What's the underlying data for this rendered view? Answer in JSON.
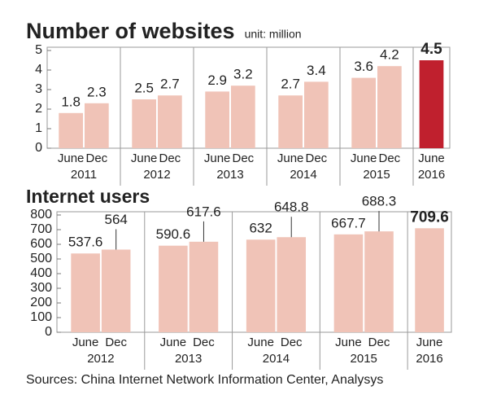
{
  "chart_data": [
    {
      "type": "bar",
      "title": "Number of websites",
      "subtitle": "unit: million",
      "color": "#f0c3b7",
      "ylim": [
        0,
        5
      ],
      "yticks": [
        0,
        1,
        2,
        3,
        4,
        5
      ],
      "groups": [
        {
          "label": "2011",
          "categories": [
            "June",
            "Dec"
          ],
          "values": [
            1.8,
            2.3
          ]
        },
        {
          "label": "2012",
          "categories": [
            "June",
            "Dec"
          ],
          "values": [
            2.5,
            2.7
          ]
        },
        {
          "label": "2013",
          "categories": [
            "June",
            "Dec"
          ],
          "values": [
            2.9,
            3.2
          ]
        },
        {
          "label": "2014",
          "categories": [
            "June",
            "Dec"
          ],
          "values": [
            2.7,
            3.4
          ]
        },
        {
          "label": "2015",
          "categories": [
            "June",
            "Dec"
          ],
          "values": [
            3.6,
            4.2
          ]
        },
        {
          "label": "2016",
          "categories": [
            "June"
          ],
          "values": [
            4.5
          ],
          "color": "#c0202e"
        }
      ]
    },
    {
      "type": "bar",
      "title": "Internet users",
      "color": "#f0c3b7",
      "ylim": [
        0,
        800
      ],
      "yticks": [
        0,
        100,
        200,
        300,
        400,
        500,
        600,
        700,
        800
      ],
      "groups": [
        {
          "label": "2012",
          "categories": [
            "June",
            "Dec"
          ],
          "values": [
            537.6,
            564
          ]
        },
        {
          "label": "2013",
          "categories": [
            "June",
            "Dec"
          ],
          "values": [
            590.6,
            617.6
          ]
        },
        {
          "label": "2014",
          "categories": [
            "June",
            "Dec"
          ],
          "values": [
            632,
            648.8
          ]
        },
        {
          "label": "2015",
          "categories": [
            "June",
            "Dec"
          ],
          "values": [
            667.7,
            688.3
          ]
        },
        {
          "label": "2016",
          "categories": [
            "June"
          ],
          "values": [
            709.6
          ]
        }
      ]
    }
  ],
  "source": "Sources: China Internet Network Information Center, Analysys"
}
